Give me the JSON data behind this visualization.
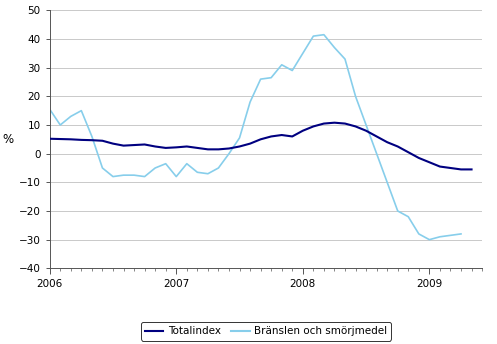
{
  "title": "",
  "ylabel": "%",
  "ylim": [
    -40,
    50
  ],
  "yticks": [
    -40,
    -30,
    -20,
    -10,
    0,
    10,
    20,
    30,
    40,
    50
  ],
  "xlim": [
    0,
    41
  ],
  "xtick_positions": [
    0,
    12,
    24,
    36
  ],
  "xtick_labels": [
    "2006",
    "2007",
    "2008",
    "2009"
  ],
  "legend_labels": [
    "Totalindex",
    "Bränslen och smörjmedel"
  ],
  "totalindex_color": "#000080",
  "branslen_color": "#87CEEB",
  "background_color": "#ffffff",
  "grid_color": "#c0c0c0",
  "totalindex": [
    5.2,
    5.1,
    5.0,
    4.8,
    4.7,
    4.5,
    3.5,
    2.8,
    3.0,
    3.2,
    2.5,
    2.0,
    2.2,
    2.5,
    2.0,
    1.5,
    1.5,
    1.8,
    2.5,
    3.5,
    5.0,
    6.0,
    6.5,
    6.0,
    8.0,
    9.5,
    10.5,
    10.8,
    10.5,
    9.5,
    8.0,
    6.0,
    4.0,
    2.5,
    0.5,
    -1.5,
    -3.0,
    -4.5,
    -5.0,
    -5.5,
    -5.5
  ],
  "branslen": [
    15.5,
    10.0,
    13.0,
    15.0,
    6.0,
    -5.0,
    -8.0,
    -7.5,
    -7.5,
    -8.0,
    -5.0,
    -3.5,
    -8.0,
    -3.5,
    -6.5,
    -7.0,
    -5.0,
    0.0,
    5.5,
    18.0,
    26.0,
    26.5,
    31.0,
    29.0,
    35.0,
    41.0,
    41.5,
    37.0,
    33.0,
    20.0,
    10.0,
    0.0,
    -10.0,
    -20.0,
    -22.0,
    -28.0,
    -30.0,
    -29.0,
    -28.5,
    -28.0,
    null
  ]
}
